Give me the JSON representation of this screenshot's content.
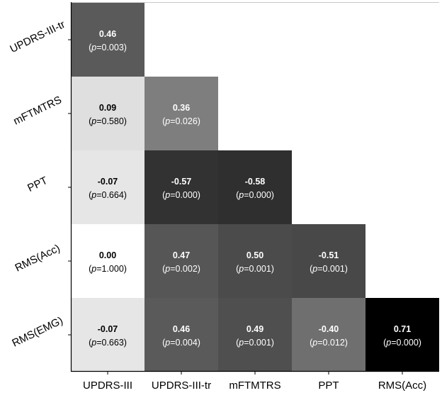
{
  "chart_data": {
    "type": "heatmap",
    "title": "",
    "columns": [
      "UPDRS-III",
      "UPDRS-III-tr",
      "mFTMTRS",
      "PPT",
      "RMS(Acc)"
    ],
    "rows": [
      "UPDRS-III-tr",
      "mFTMTRS",
      "PPT",
      "RMS(Acc)",
      "RMS(EMG)"
    ],
    "p_prefix": "p",
    "cells": [
      [
        {
          "r": "0.46",
          "p": "=0.003"
        },
        null,
        null,
        null,
        null
      ],
      [
        {
          "r": "0.09",
          "p": "=0.580"
        },
        {
          "r": "0.36",
          "p": "=0.026"
        },
        null,
        null,
        null
      ],
      [
        {
          "r": "-0.07",
          "p": "=0.664"
        },
        {
          "r": "-0.57",
          "p": "=0.000"
        },
        {
          "r": "-0.58",
          "p": "=0.000"
        },
        null,
        null
      ],
      [
        {
          "r": "0.00",
          "p": "=1.000"
        },
        {
          "r": "0.47",
          "p": "=0.002"
        },
        {
          "r": "0.50",
          "p": "=0.001"
        },
        {
          "r": "-0.51",
          "p": "=0.001"
        },
        null
      ],
      [
        {
          "r": "-0.07",
          "p": "=0.663"
        },
        {
          "r": "0.46",
          "p": "=0.004"
        },
        {
          "r": "0.49",
          "p": "=0.001"
        },
        {
          "r": "-0.40",
          "p": "=0.012"
        },
        {
          "r": "0.71",
          "p": "=0.000"
        }
      ]
    ],
    "color_scale": "grayscale by absolute r (white = 0, black = 0.71)",
    "legend": "none"
  }
}
